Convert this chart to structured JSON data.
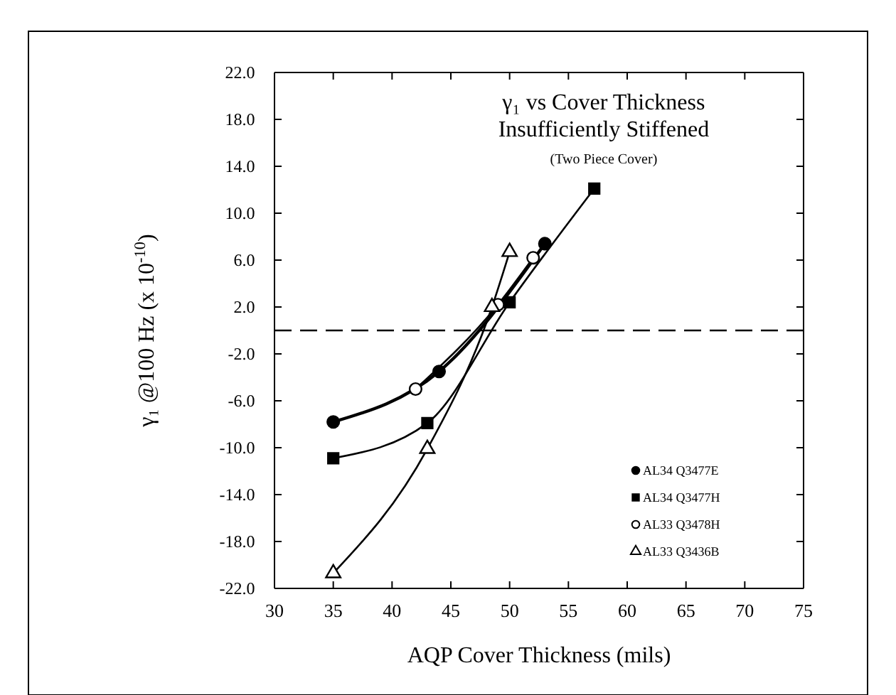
{
  "chart_data": {
    "type": "line",
    "title": "γ₁ vs Cover Thickness\nInsufficiently Stiffened",
    "subtitle": "(Two Piece Cover)",
    "xlabel": "AQP Cover Thickness (mils)",
    "ylabel": "γ₁  @100 Hz (x 10$^{-10}$)",
    "xlim": [
      30,
      75
    ],
    "xticks": [
      30,
      35,
      40,
      45,
      50,
      55,
      60,
      65,
      70,
      75
    ],
    "ylim": [
      -22,
      22
    ],
    "yticks": [
      {
        "value": 22,
        "label": "22.0"
      },
      {
        "value": 18,
        "label": "18.0"
      },
      {
        "value": 14,
        "label": "14.0"
      },
      {
        "value": 10,
        "label": "10.0"
      },
      {
        "value": 6,
        "label": "6.0"
      },
      {
        "value": 2,
        "label": "2.0"
      },
      {
        "value": -2,
        "label": "-2.0"
      },
      {
        "value": -6,
        "label": "-6.0"
      },
      {
        "value": -10,
        "label": "-10.0"
      },
      {
        "value": -14,
        "label": "-14.0"
      },
      {
        "value": -18,
        "label": "-18.0"
      },
      {
        "value": -22,
        "label": "-22.0"
      }
    ],
    "ref_lines": [
      {
        "axis": "y",
        "value": 0,
        "line_style": "dashed",
        "color": "#000000"
      }
    ],
    "legend": "bottom right",
    "grid": false,
    "series": [
      {
        "name": "AL34 Q3477E",
        "color": "#000000",
        "marker": "circle",
        "x": [
          35,
          44,
          53
        ],
        "values": [
          -7.8,
          -3.5,
          7.4
        ]
      },
      {
        "name": "AL34 Q3477H",
        "color": "#000000",
        "marker": "square",
        "x": [
          35,
          43,
          50,
          57.2
        ],
        "values": [
          -10.9,
          -7.9,
          2.4,
          12.1
        ]
      },
      {
        "name": "AL33 Q3478H",
        "color": "#000000",
        "marker": "circle",
        "x": [
          42,
          49,
          52
        ],
        "values": [
          -5,
          2.2,
          6.2
        ]
      },
      {
        "name": "AL33 Q3436B",
        "color": "#000000",
        "marker": "triangle",
        "x": [
          35,
          43,
          48.5,
          50
        ],
        "values": [
          -20.7,
          -10.1,
          2,
          6.7
        ]
      }
    ]
  }
}
